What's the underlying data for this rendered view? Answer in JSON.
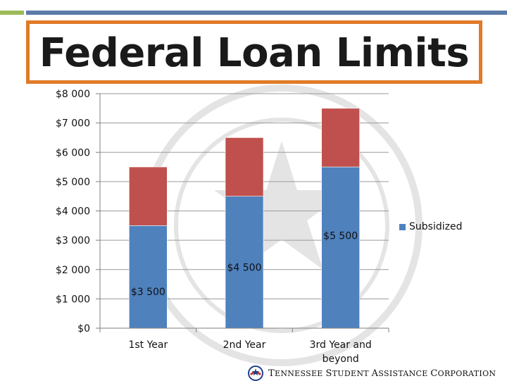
{
  "slide": {
    "title": "Federal Loan Limits",
    "footer": {
      "words": [
        {
          "initial": "T",
          "rest": "ENNESSEE"
        },
        {
          "initial": "S",
          "rest": "TUDENT"
        },
        {
          "initial": "A",
          "rest": "SSISTANCE"
        },
        {
          "initial": "C",
          "rest": "ORPORATION"
        }
      ]
    },
    "colors": {
      "accent_border": "#e07b29",
      "top_rule": "#5b7ba8",
      "top_rule_left": "#9bbb59"
    }
  },
  "chart_data": {
    "type": "bar",
    "stacked": true,
    "categories": [
      [
        "1st Year"
      ],
      [
        "2nd Year"
      ],
      [
        "3rd Year and",
        "beyond"
      ]
    ],
    "series": [
      {
        "name": "Subsidized",
        "values": [
          3500,
          4500,
          5500
        ],
        "color": "#4f81bd",
        "labels": [
          "$3 500",
          "$4 500",
          "$5 500"
        ]
      },
      {
        "values": [
          2000,
          2000,
          2000
        ],
        "color": "#c0504d"
      }
    ],
    "ylim": [
      0,
      8000
    ],
    "yticks": [
      0,
      1000,
      2000,
      3000,
      4000,
      5000,
      6000,
      7000,
      8000
    ],
    "ytick_labels": [
      "$0",
      "$1 000",
      "$2 000",
      "$3 000",
      "$4 000",
      "$5 000",
      "$6 000",
      "$7 000",
      "$8 000"
    ],
    "grid": true,
    "legend_position": "right"
  }
}
